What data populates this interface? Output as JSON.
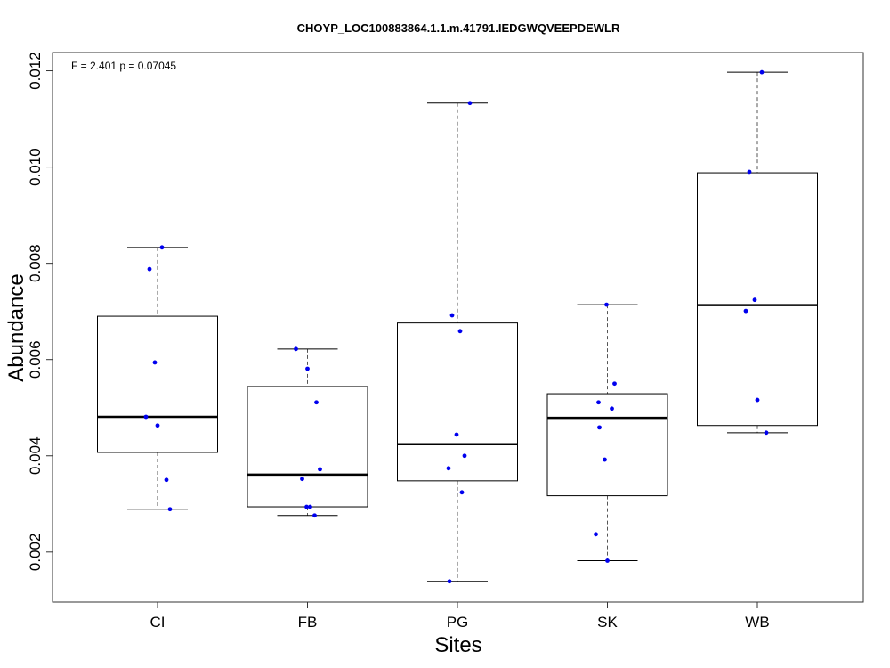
{
  "chart_data": {
    "type": "box",
    "title": "CHOYP_LOC100883864.1.1.m.41791.IEDGWQVEEPDEWLR",
    "annotation": "F = 2.401 p = 0.07045",
    "xlabel": "Sites",
    "ylabel": "Abundance",
    "ylim": [
      0.00096,
      0.01238
    ],
    "yticks": [
      "0.002",
      "0.004",
      "0.006",
      "0.008",
      "0.010",
      "0.012"
    ],
    "grid": false,
    "point_color": "#0000ee",
    "categories": [
      "CI",
      "FB",
      "PG",
      "SK",
      "WB"
    ],
    "boxes": [
      {
        "name": "CI",
        "whisker_low": 0.00289,
        "q1": 0.00407,
        "median": 0.00481,
        "q3": 0.0069,
        "whisker_high": 0.00833,
        "points": [
          0.00833,
          0.00788,
          0.00594,
          0.00481,
          0.00463,
          0.0035,
          0.00289
        ]
      },
      {
        "name": "FB",
        "whisker_low": 0.00276,
        "q1": 0.00294,
        "median": 0.00361,
        "q3": 0.00544,
        "whisker_high": 0.00622,
        "points": [
          0.00622,
          0.00581,
          0.00511,
          0.00372,
          0.00352,
          0.00294,
          0.00294,
          0.00276
        ]
      },
      {
        "name": "PG",
        "whisker_low": 0.00139,
        "q1": 0.00348,
        "median": 0.00424,
        "q3": 0.00676,
        "whisker_high": 0.01133,
        "points": [
          0.01133,
          0.00692,
          0.00659,
          0.00444,
          0.004,
          0.00374,
          0.00324,
          0.00139
        ]
      },
      {
        "name": "SK",
        "whisker_low": 0.00182,
        "q1": 0.00317,
        "median": 0.00479,
        "q3": 0.00529,
        "whisker_high": 0.00714,
        "points": [
          0.00714,
          0.0055,
          0.00511,
          0.00498,
          0.00459,
          0.00392,
          0.00237,
          0.00182
        ]
      },
      {
        "name": "WB",
        "whisker_low": 0.00448,
        "q1": 0.00463,
        "median": 0.00713,
        "q3": 0.00988,
        "whisker_high": 0.01197,
        "points": [
          0.01197,
          0.0099,
          0.00724,
          0.00701,
          0.00516,
          0.00448
        ]
      }
    ]
  }
}
